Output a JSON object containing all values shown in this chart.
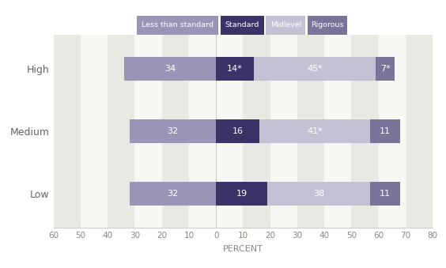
{
  "categories": [
    "High",
    "Medium",
    "Low"
  ],
  "less_than_standard": [
    34,
    32,
    32
  ],
  "standard": [
    14,
    16,
    19
  ],
  "midlevel": [
    45,
    41,
    38
  ],
  "rigorous": [
    7,
    11,
    11
  ],
  "labels": {
    "less_than_standard": [
      "34",
      "32",
      "32"
    ],
    "standard": [
      "14*",
      "16",
      "19"
    ],
    "midlevel": [
      "45*",
      "41*",
      "38"
    ],
    "rigorous": [
      "7*",
      "11",
      "11"
    ]
  },
  "colors": {
    "less_than_standard": "#9b94b6",
    "standard": "#3b3268",
    "midlevel": "#c5c1d5",
    "rigorous": "#7a7499"
  },
  "legend_labels": [
    "Less than standard",
    "Standard",
    "Midlevel",
    "Rigorous"
  ],
  "xlabel": "PERCENT",
  "xlim": [
    -60,
    80
  ],
  "xticks": [
    -60,
    -50,
    -40,
    -30,
    -20,
    -10,
    0,
    10,
    20,
    30,
    40,
    50,
    60,
    70,
    80
  ],
  "xticklabels": [
    "60",
    "50",
    "40",
    "30",
    "20",
    "10",
    "0",
    "10",
    "20",
    "30",
    "40",
    "50",
    "60",
    "70",
    "80"
  ],
  "bg_color": "#ffffff",
  "plot_bg_color": "#f7f7f4",
  "stripe_color": "#e9e9e4",
  "bar_height": 0.38,
  "font_size": 9,
  "label_font_size": 8.0,
  "ytick_fontsize": 9,
  "xtick_fontsize": 7.5
}
